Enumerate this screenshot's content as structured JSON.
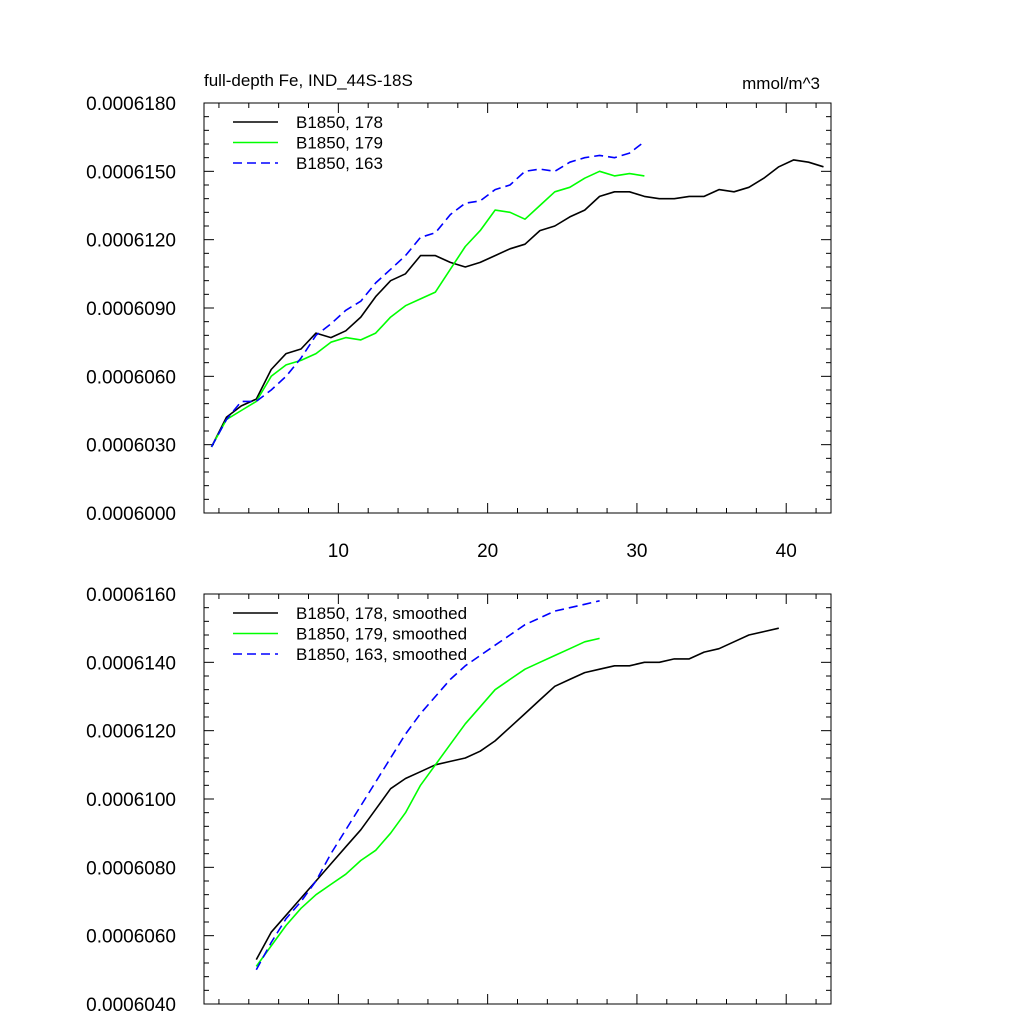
{
  "chart_data": [
    {
      "type": "line",
      "title": "full-depth Fe, IND_44S-18S",
      "units": "mmol/m^3",
      "xlim": [
        1,
        43
      ],
      "ylim": [
        0.0006,
        0.000618
      ],
      "xticks": [
        10,
        20,
        30,
        40
      ],
      "yticks": [
        0.0006,
        0.000603,
        0.000606,
        0.000609,
        0.000612,
        0.000615,
        0.000618
      ],
      "ytick_labels": [
        "0.0006000",
        "0.0006030",
        "0.0006060",
        "0.0006090",
        "0.0006120",
        "0.0006150",
        "0.0006180"
      ],
      "legend_position": "top-left",
      "series": [
        {
          "name": "B1850, 178",
          "color": "#000000",
          "dash": "solid",
          "x": [
            1.5,
            2.5,
            3.5,
            4.5,
            5.5,
            6.5,
            7.5,
            8.5,
            9.5,
            10.5,
            11.5,
            12.5,
            13.5,
            14.5,
            15.5,
            16.5,
            17.5,
            18.5,
            19.5,
            20.5,
            21.5,
            22.5,
            23.5,
            24.5,
            25.5,
            26.5,
            27.5,
            28.5,
            29.5,
            30.5,
            31.5,
            32.5,
            33.5,
            34.5,
            35.5,
            36.5,
            37.5,
            38.5,
            39.5,
            40.5,
            41.5,
            42.5
          ],
          "y": [
            0.0006029,
            0.0006042,
            0.0006047,
            0.000605,
            0.0006063,
            0.000607,
            0.0006072,
            0.0006079,
            0.0006077,
            0.000608,
            0.0006086,
            0.0006095,
            0.0006102,
            0.0006105,
            0.0006113,
            0.0006113,
            0.000611,
            0.0006108,
            0.000611,
            0.0006113,
            0.0006116,
            0.0006118,
            0.0006124,
            0.0006126,
            0.000613,
            0.0006133,
            0.0006139,
            0.0006141,
            0.0006141,
            0.0006139,
            0.0006138,
            0.0006138,
            0.0006139,
            0.0006139,
            0.0006142,
            0.0006141,
            0.0006143,
            0.0006147,
            0.0006152,
            0.0006155,
            0.0006154,
            0.0006152
          ]
        },
        {
          "name": "B1850, 179",
          "color": "#00ff00",
          "dash": "solid",
          "x": [
            1.5,
            2.5,
            3.5,
            4.5,
            5.5,
            6.5,
            7.5,
            8.5,
            9.5,
            10.5,
            11.5,
            12.5,
            13.5,
            14.5,
            15.5,
            16.5,
            17.5,
            18.5,
            19.5,
            20.5,
            21.5,
            22.5,
            23.5,
            24.5,
            25.5,
            26.5,
            27.5,
            28.5,
            29.5,
            30.5
          ],
          "y": [
            0.0006029,
            0.0006041,
            0.0006045,
            0.0006049,
            0.000606,
            0.0006065,
            0.0006067,
            0.000607,
            0.0006075,
            0.0006077,
            0.0006076,
            0.0006079,
            0.0006086,
            0.0006091,
            0.0006094,
            0.0006097,
            0.0006107,
            0.0006117,
            0.0006124,
            0.0006133,
            0.0006132,
            0.0006129,
            0.0006135,
            0.0006141,
            0.0006143,
            0.0006147,
            0.000615,
            0.0006148,
            0.0006149,
            0.0006148
          ]
        },
        {
          "name": "B1850, 163",
          "color": "#0000ff",
          "dash": "dashed",
          "x": [
            1.5,
            2.5,
            3.5,
            4.5,
            5.5,
            6.5,
            7.5,
            8.5,
            9.5,
            10.5,
            11.5,
            12.5,
            13.5,
            14.5,
            15.5,
            16.5,
            17.5,
            18.5,
            19.5,
            20.5,
            21.5,
            22.5,
            23.5,
            24.5,
            25.5,
            26.5,
            27.5,
            28.5,
            29.5,
            30.5
          ],
          "y": [
            0.0006029,
            0.0006041,
            0.0006049,
            0.0006049,
            0.0006054,
            0.000606,
            0.0006068,
            0.0006078,
            0.0006083,
            0.0006089,
            0.0006093,
            0.0006101,
            0.0006107,
            0.0006113,
            0.0006121,
            0.0006123,
            0.0006131,
            0.0006136,
            0.0006137,
            0.0006142,
            0.0006144,
            0.000615,
            0.0006151,
            0.000615,
            0.0006154,
            0.0006156,
            0.0006157,
            0.0006156,
            0.0006158,
            0.0006163
          ]
        }
      ]
    },
    {
      "type": "line",
      "xlim": [
        1,
        43
      ],
      "ylim": [
        0.000604,
        0.000616
      ],
      "xticks": [
        10,
        20,
        30,
        40
      ],
      "yticks": [
        0.000604,
        0.000606,
        0.000608,
        0.00061,
        0.000612,
        0.000614,
        0.000616
      ],
      "ytick_labels": [
        "0.0006040",
        "0.0006060",
        "0.0006080",
        "0.0006100",
        "0.0006120",
        "0.0006140",
        "0.0006160"
      ],
      "legend_position": "top-left",
      "series": [
        {
          "name": "B1850, 178, smoothed",
          "color": "#000000",
          "dash": "solid",
          "x": [
            4.5,
            5.5,
            6.5,
            7.5,
            8.5,
            9.5,
            10.5,
            11.5,
            12.5,
            13.5,
            14.5,
            15.5,
            16.5,
            17.5,
            18.5,
            19.5,
            20.5,
            21.5,
            22.5,
            23.5,
            24.5,
            25.5,
            26.5,
            27.5,
            28.5,
            29.5,
            30.5,
            31.5,
            32.5,
            33.5,
            34.5,
            35.5,
            36.5,
            37.5,
            38.5,
            39.5
          ],
          "y": [
            0.0006053,
            0.0006061,
            0.0006066,
            0.0006071,
            0.0006076,
            0.0006081,
            0.0006086,
            0.0006091,
            0.0006097,
            0.0006103,
            0.0006106,
            0.0006108,
            0.000611,
            0.0006111,
            0.0006112,
            0.0006114,
            0.0006117,
            0.0006121,
            0.0006125,
            0.0006129,
            0.0006133,
            0.0006135,
            0.0006137,
            0.0006138,
            0.0006139,
            0.0006139,
            0.000614,
            0.000614,
            0.0006141,
            0.0006141,
            0.0006143,
            0.0006144,
            0.0006146,
            0.0006148,
            0.0006149,
            0.000615
          ]
        },
        {
          "name": "B1850, 179, smoothed",
          "color": "#00ff00",
          "dash": "solid",
          "x": [
            4.5,
            5.5,
            6.5,
            7.5,
            8.5,
            9.5,
            10.5,
            11.5,
            12.5,
            13.5,
            14.5,
            15.5,
            16.5,
            17.5,
            18.5,
            19.5,
            20.5,
            21.5,
            22.5,
            23.5,
            24.5,
            25.5,
            26.5,
            27.5
          ],
          "y": [
            0.0006051,
            0.0006057,
            0.0006063,
            0.0006068,
            0.0006072,
            0.0006075,
            0.0006078,
            0.0006082,
            0.0006085,
            0.000609,
            0.0006096,
            0.0006104,
            0.000611,
            0.0006116,
            0.0006122,
            0.0006127,
            0.0006132,
            0.0006135,
            0.0006138,
            0.000614,
            0.0006142,
            0.0006144,
            0.0006146,
            0.0006147
          ]
        },
        {
          "name": "B1850, 163, smoothed",
          "color": "#0000ff",
          "dash": "dashed",
          "x": [
            4.5,
            5.5,
            6.5,
            7.5,
            8.5,
            9.5,
            10.5,
            11.5,
            12.5,
            13.5,
            14.5,
            15.5,
            16.5,
            17.5,
            18.5,
            19.5,
            20.5,
            21.5,
            22.5,
            23.5,
            24.5,
            25.5,
            26.5,
            27.5
          ],
          "y": [
            0.000605,
            0.0006058,
            0.0006065,
            0.000607,
            0.0006076,
            0.0006084,
            0.0006091,
            0.0006098,
            0.0006105,
            0.0006112,
            0.0006119,
            0.0006125,
            0.000613,
            0.0006135,
            0.0006139,
            0.0006142,
            0.0006145,
            0.0006148,
            0.0006151,
            0.0006153,
            0.0006155,
            0.0006156,
            0.0006157,
            0.0006158
          ]
        }
      ]
    }
  ]
}
